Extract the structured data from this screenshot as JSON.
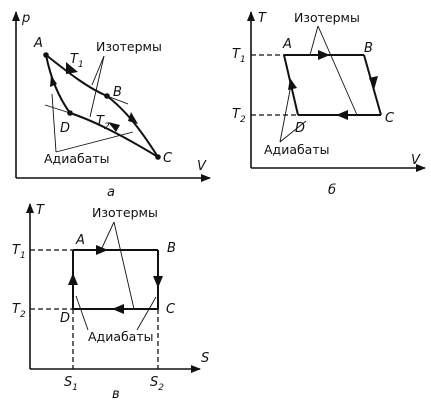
{
  "diagrams": {
    "pv": {
      "y_axis": "p",
      "x_axis": "V",
      "caption": "а",
      "points": {
        "A": "A",
        "B": "B",
        "C": "C",
        "D": "D"
      },
      "t1": {
        "letter": "T",
        "sub": "1"
      },
      "t2": {
        "letter": "T",
        "sub": "2"
      },
      "isotherms": "Изотермы",
      "adiabats": "Адиабаты"
    },
    "tv": {
      "y_axis": "T",
      "x_axis": "V",
      "caption": "б",
      "points": {
        "A": "A",
        "B": "B",
        "C": "C",
        "D": "D"
      },
      "t1": {
        "letter": "T",
        "sub": "1"
      },
      "t2": {
        "letter": "T",
        "sub": "2"
      },
      "isotherms": "Изотермы",
      "adiabats": "Адиабаты"
    },
    "ts": {
      "y_axis": "T",
      "x_axis": "S",
      "caption": "в",
      "points": {
        "A": "A",
        "B": "B",
        "C": "C",
        "D": "D"
      },
      "t1": {
        "letter": "T",
        "sub": "1"
      },
      "t2": {
        "letter": "T",
        "sub": "2"
      },
      "s1": {
        "letter": "S",
        "sub": "1"
      },
      "s2": {
        "letter": "S",
        "sub": "2"
      },
      "isotherms": "Изотермы",
      "adiabats": "Адиабаты"
    }
  }
}
